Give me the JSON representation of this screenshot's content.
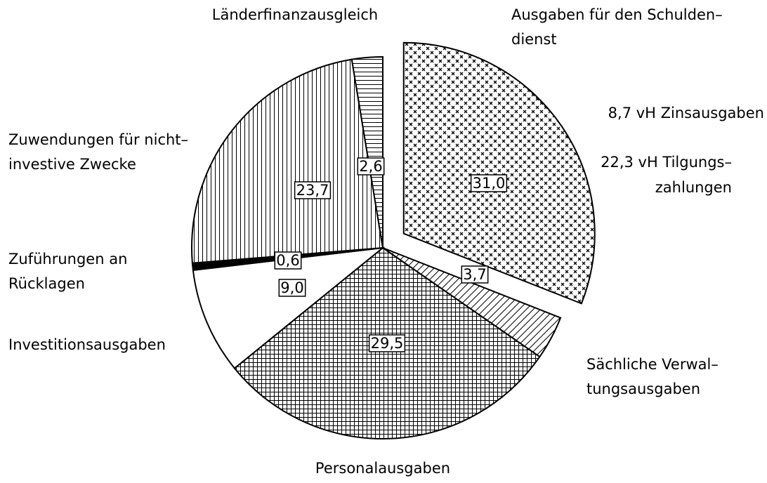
{
  "chart_data": {
    "type": "pie",
    "categories": [
      "Ausgaben für den Schulden–\ndienst",
      "Sächliche Verwal–\ntungsausgaben",
      "Personalausgaben",
      "Investitionsausgaben",
      "Zuführungen an\nRücklagen",
      "Zuwendungen für nicht–\ninvestive Zwecke",
      "Länderfinanzausgleich"
    ],
    "values": [
      31.0,
      3.7,
      29.5,
      9.0,
      0.6,
      23.7,
      2.6
    ],
    "value_labels": [
      "31,0",
      "3,7",
      "29,5",
      "9,0",
      "0,6",
      "23,7",
      "2,6"
    ],
    "patterns": [
      "cross",
      "diagonal",
      "grid",
      "none",
      "solid",
      "vertical",
      "horizontal"
    ],
    "exploded": [
      0
    ],
    "annotations": [
      "8,7 vH Zinsausgaben",
      "22,3 vH Tilgungs–\nzahlungen"
    ]
  }
}
